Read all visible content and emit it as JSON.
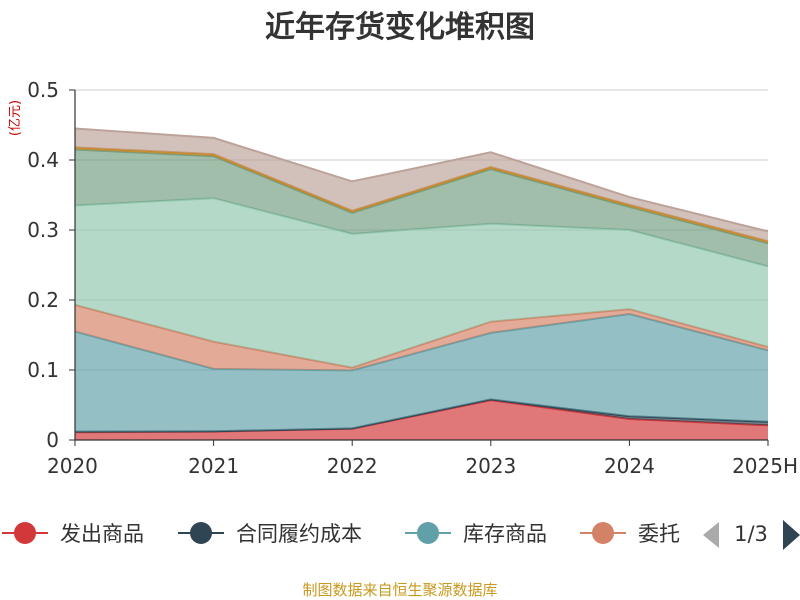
{
  "chart_data": {
    "type": "area",
    "stacked": true,
    "title": "近年存货变化堆积图",
    "unit_label": "(亿元)",
    "x": [
      "2020",
      "2021",
      "2022",
      "2023",
      "2024",
      "2025H"
    ],
    "ylim": [
      0,
      0.5
    ],
    "yticks": [
      "0",
      "0.1",
      "0.2",
      "0.3",
      "0.4",
      "0.5"
    ],
    "grid": true,
    "series": [
      {
        "name": "发出商品",
        "color": "#d2383a",
        "values": [
          0.011,
          0.012,
          0.016,
          0.057,
          0.03,
          0.021
        ]
      },
      {
        "name": "合同履约成本",
        "color": "#2f4554",
        "values": [
          0.001,
          0.0005,
          0.0005,
          0.001,
          0.004,
          0.005
        ]
      },
      {
        "name": "库存商品",
        "color": "#61a0a8",
        "values": [
          0.143,
          0.089,
          0.083,
          0.095,
          0.146,
          0.102
        ]
      },
      {
        "name": "委托",
        "color": "#d48265",
        "values": [
          0.038,
          0.039,
          0.004,
          0.016,
          0.007,
          0.005
        ]
      },
      {
        "name": "",
        "color": "#91c7ae",
        "values": [
          0.142,
          0.205,
          0.191,
          0.14,
          0.113,
          0.115
        ]
      },
      {
        "name": "",
        "color": "#749f83",
        "values": [
          0.08,
          0.06,
          0.03,
          0.078,
          0.033,
          0.033
        ]
      },
      {
        "name": "",
        "color": "#ca8622",
        "values": [
          0.003,
          0.003,
          0.003,
          0.003,
          0.003,
          0.003
        ]
      },
      {
        "name": "",
        "color": "#bda29a",
        "values": [
          0.027,
          0.023,
          0.042,
          0.021,
          0.011,
          0.014
        ]
      }
    ]
  },
  "legend": {
    "items": [
      {
        "label": "发出商品",
        "color": "#d2383a"
      },
      {
        "label": "合同履约成本",
        "color": "#2f4554"
      },
      {
        "label": "库存商品",
        "color": "#61a0a8"
      },
      {
        "label": "委托",
        "color": "#d48265"
      }
    ],
    "page": "1/3"
  },
  "source": "制图数据来自恒生聚源数据库"
}
